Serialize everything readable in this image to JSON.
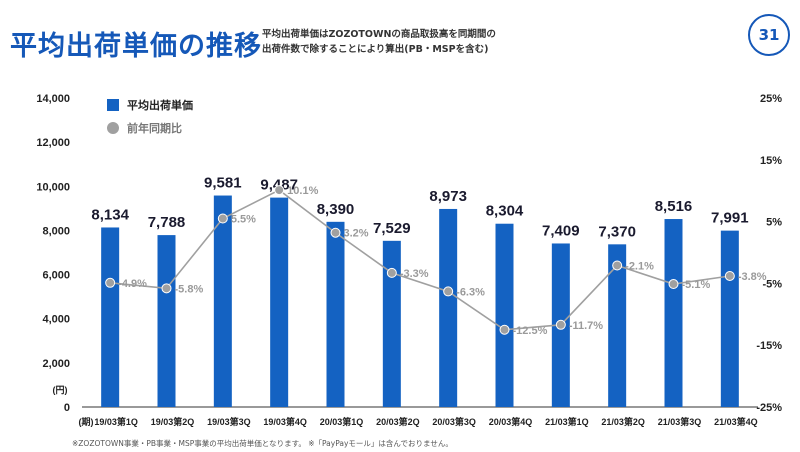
{
  "header": {
    "title": "平均出荷単価の推移",
    "subtitle_line1": "平均出荷単価はZOZOTOWNの商品取扱高を同期間の",
    "subtitle_line2": "出荷件数で除することにより算出(PB・MSPを含む)",
    "page_number": "31"
  },
  "footnote": "※ZOZOTOWN事業・PB事業・MSP事業の平均出荷単価となります。 ※「PayPayモール」は含んでおりません。",
  "colors": {
    "bar": "#1462c2",
    "line": "#a0a0a0",
    "accent": "#1558b8"
  },
  "chart_data": {
    "type": "bar",
    "categories": [
      "19/03第1Q",
      "19/03第2Q",
      "19/03第3Q",
      "19/03第4Q",
      "20/03第1Q",
      "20/03第2Q",
      "20/03第3Q",
      "20/03第4Q",
      "21/03第1Q",
      "21/03第2Q",
      "21/03第3Q",
      "21/03第4Q"
    ],
    "series": [
      {
        "name": "平均出荷単価",
        "type": "bar",
        "axis": "left",
        "values": [
          8134,
          7788,
          9581,
          9487,
          8390,
          7529,
          8973,
          8304,
          7409,
          7370,
          8516,
          7991
        ],
        "labels": [
          "8,134",
          "7,788",
          "9,581",
          "9,487",
          "8,390",
          "7,529",
          "8,973",
          "8,304",
          "7,409",
          "7,370",
          "8,516",
          "7,991"
        ]
      },
      {
        "name": "前年同期比",
        "type": "line",
        "axis": "right",
        "values": [
          -4.9,
          -5.8,
          5.5,
          10.1,
          3.2,
          -3.3,
          -6.3,
          -12.5,
          -11.7,
          -2.1,
          -5.1,
          -3.8
        ],
        "labels": [
          "-4.9%",
          "-5.8%",
          "5.5%",
          "10.1%",
          "3.2%",
          "-3.3%",
          "-6.3%",
          "-12.5%",
          "-11.7%",
          "-2.1%",
          "-5.1%",
          "-3.8%"
        ]
      }
    ],
    "left_axis": {
      "ylim": [
        0,
        14000
      ],
      "ticks": [
        "14,000",
        "12,000",
        "10,000",
        "8,000",
        "6,000",
        "4,000",
        "2,000",
        "0"
      ],
      "unit": "(円)"
    },
    "right_axis": {
      "ylim": [
        -25,
        25
      ],
      "ticks": [
        "25%",
        "15%",
        "5%",
        "-5%",
        "-15%",
        "-25%"
      ]
    },
    "x_prefix": "(期)",
    "grid": false,
    "legend": "top-left"
  }
}
